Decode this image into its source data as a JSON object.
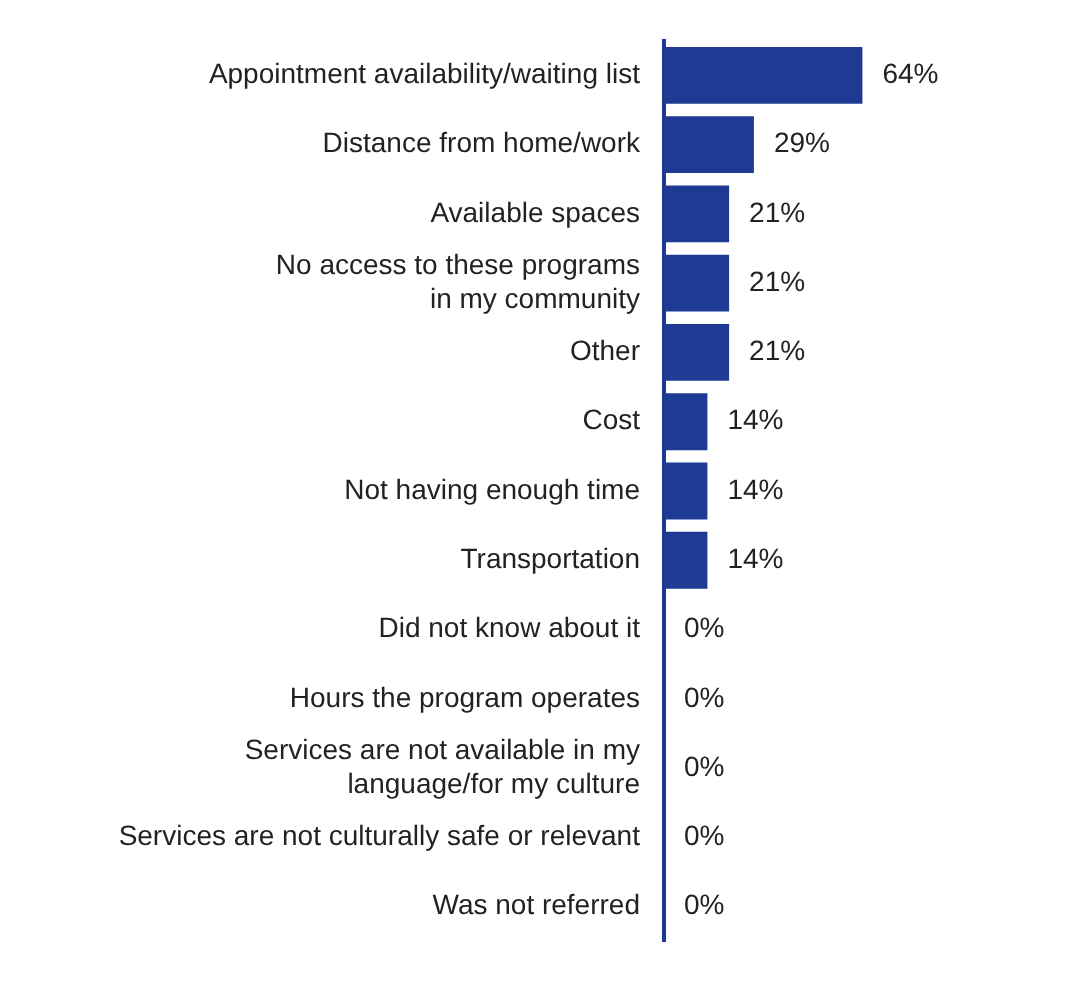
{
  "chart_data": {
    "type": "bar",
    "orientation": "horizontal",
    "categories": [
      "Appointment availability/waiting list",
      "Distance from home/work",
      "Available spaces",
      "No access to these programs\nin my community",
      "Other",
      "Cost",
      "Not having enough time",
      "Transportation",
      "Did not know about it",
      "Hours the program operates",
      "Services are not available in my\nlanguage/for my culture",
      "Services are not culturally safe or relevant",
      "Was not referred"
    ],
    "values": [
      64,
      29,
      21,
      21,
      21,
      14,
      14,
      14,
      0,
      0,
      0,
      0,
      0
    ],
    "value_labels": [
      "64%",
      "29%",
      "21%",
      "21%",
      "21%",
      "14%",
      "14%",
      "14%",
      "0%",
      "0%",
      "0%",
      "0%",
      "0%"
    ],
    "color": "#1f3a93",
    "tick_labels": "y",
    "legend": false
  }
}
